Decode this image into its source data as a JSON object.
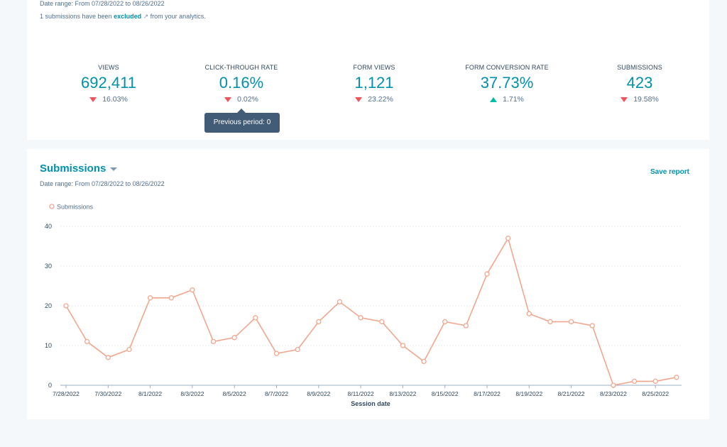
{
  "summary": {
    "date_range": "Date range: From 07/28/2022 to 08/26/2022",
    "excluded_prefix": "1 submissions have been",
    "excluded_link": "excluded",
    "excluded_suffix": "from your analytics.",
    "kpis": [
      {
        "label": "VIEWS",
        "value": "692,411",
        "change": "16.03%",
        "direction": "down"
      },
      {
        "label": "CLICK-THROUGH RATE",
        "value": "0.16%",
        "change": "0.02%",
        "direction": "down"
      },
      {
        "label": "FORM VIEWS",
        "value": "1,121",
        "change": "23.22%",
        "direction": "down"
      },
      {
        "label": "FORM CONVERSION RATE",
        "value": "37.73%",
        "change": "1.71%",
        "direction": "up"
      },
      {
        "label": "SUBMISSIONS",
        "value": "423",
        "change": "19.58%",
        "direction": "down"
      }
    ],
    "tooltip": "Previous period: 0"
  },
  "report": {
    "title": "Submissions",
    "date_range": "Date range: From 07/28/2022 to 08/26/2022",
    "save_label": "Save report"
  },
  "colors": {
    "accent": "#0091ae",
    "line": "#f2a68e",
    "down": "#f2545b",
    "up": "#00bda5"
  },
  "chart_data": {
    "type": "line",
    "legend": "Submissions",
    "legend_position": "top-left",
    "xlabel": "Session date",
    "ylabel": "",
    "ylim": [
      0,
      40
    ],
    "yticks": [
      0,
      10,
      20,
      30,
      40
    ],
    "grid": true,
    "x": [
      "7/28/2022",
      "7/29/2022",
      "7/30/2022",
      "7/31/2022",
      "8/1/2022",
      "8/2/2022",
      "8/3/2022",
      "8/4/2022",
      "8/5/2022",
      "8/6/2022",
      "8/7/2022",
      "8/8/2022",
      "8/9/2022",
      "8/10/2022",
      "8/11/2022",
      "8/12/2022",
      "8/13/2022",
      "8/14/2022",
      "8/15/2022",
      "8/16/2022",
      "8/17/2022",
      "8/18/2022",
      "8/19/2022",
      "8/20/2022",
      "8/21/2022",
      "8/22/2022",
      "8/23/2022",
      "8/24/2022",
      "8/25/2022",
      "8/26/2022"
    ],
    "xticks": [
      "7/28/2022",
      "7/30/2022",
      "8/1/2022",
      "8/3/2022",
      "8/5/2022",
      "8/7/2022",
      "8/9/2022",
      "8/11/2022",
      "8/13/2022",
      "8/15/2022",
      "8/17/2022",
      "8/19/2022",
      "8/21/2022",
      "8/23/2022",
      "8/25/2022"
    ],
    "series": [
      {
        "name": "Submissions",
        "values": [
          20,
          11,
          7,
          9,
          22,
          22,
          24,
          11,
          12,
          17,
          8,
          9,
          16,
          21,
          17,
          16,
          10,
          6,
          16,
          15,
          28,
          37,
          18,
          16,
          16,
          15,
          0,
          1,
          1,
          2
        ]
      }
    ]
  }
}
